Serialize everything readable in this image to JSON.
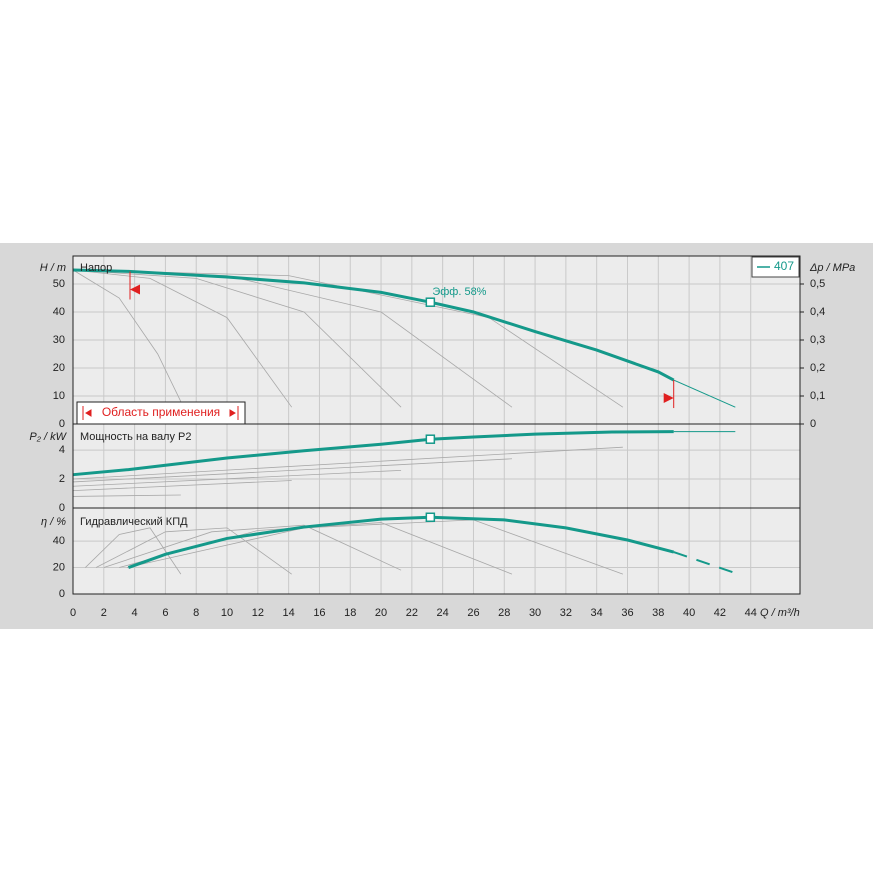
{
  "chart_data": [
    {
      "type": "line",
      "title": "Напор",
      "ylabel": "H / m",
      "y2label": "Δp / MPa",
      "ylim": [
        0,
        60
      ],
      "yticks": [
        0,
        10,
        20,
        30,
        40,
        50
      ],
      "y2lim": [
        0,
        0.6
      ],
      "y2ticks": [
        0,
        {
          "value": 0.1,
          "label": "0,1"
        },
        {
          "value": 0.2,
          "label": "0,2"
        },
        {
          "value": 0.3,
          "label": "0,3"
        },
        {
          "value": 0.4,
          "label": "0,4"
        },
        {
          "value": 0.5,
          "label": "0,5"
        }
      ],
      "grid": true,
      "legend": "top-right",
      "extrapolated_style": "thin",
      "series": [
        {
          "name": "407",
          "color": "#14998a",
          "x": [
            0,
            3.6,
            10,
            15,
            20,
            23.2,
            26,
            30,
            34,
            38,
            39,
            43
          ],
          "values": [
            55,
            54.5,
            52.5,
            50.4,
            47,
            43.5,
            40,
            33,
            26.4,
            18.6,
            15.7,
            6
          ]
        }
      ],
      "duty_point": {
        "x": 23.2,
        "y": 43.5
      },
      "annotation": "Эфф. 58%",
      "application_range": [
        3.7,
        39
      ],
      "application_range_label": "Область применения",
      "reference_curves": [
        {
          "x": [
            0,
            3,
            5.5,
            7
          ],
          "values": [
            55,
            45,
            25,
            8
          ]
        },
        {
          "x": [
            0,
            5,
            10,
            14.2
          ],
          "values": [
            55,
            52,
            38,
            6
          ]
        },
        {
          "x": [
            0,
            8,
            15,
            21.3
          ],
          "values": [
            55,
            52,
            40,
            6
          ]
        },
        {
          "x": [
            0,
            10,
            20,
            28.5
          ],
          "values": [
            55,
            53,
            40,
            6
          ]
        },
        {
          "x": [
            0,
            14,
            27,
            35.7
          ],
          "values": [
            55,
            53,
            38,
            6
          ]
        }
      ]
    },
    {
      "type": "line",
      "title": "Мощность на валу P2",
      "ylabel": "P₂ / kW",
      "ylim": [
        0,
        5.8
      ],
      "yticks": [
        0,
        2,
        4
      ],
      "grid": true,
      "extrapolated_style": "thin",
      "series": [
        {
          "color": "#14998a",
          "x": [
            0,
            3.6,
            10,
            15,
            20,
            23.2,
            26,
            30,
            35,
            39,
            43
          ],
          "values": [
            2.3,
            2.65,
            3.45,
            3.95,
            4.4,
            4.75,
            4.9,
            5.1,
            5.25,
            5.27,
            5.27
          ]
        }
      ],
      "duty_point": {
        "x": 23.2,
        "y": 4.75
      },
      "reference_curves": [
        {
          "x": [
            0,
            7
          ],
          "values": [
            0.8,
            0.9
          ]
        },
        {
          "x": [
            0,
            14.2
          ],
          "values": [
            1.2,
            1.9
          ]
        },
        {
          "x": [
            0,
            21.3
          ],
          "values": [
            1.5,
            2.6
          ]
        },
        {
          "x": [
            0,
            28.5
          ],
          "values": [
            1.8,
            3.4
          ]
        },
        {
          "x": [
            0,
            35.7
          ],
          "values": [
            2.0,
            4.2
          ]
        }
      ]
    },
    {
      "type": "line",
      "title": "Гидравлический КПД",
      "ylabel": "η / %",
      "xlabel": "Q / m³/h",
      "ylim": [
        0,
        65
      ],
      "yticks": [
        0,
        20,
        40
      ],
      "grid": true,
      "extrapolated_style": "dashed",
      "xlim": [
        0,
        47.2
      ],
      "xticks": [
        0,
        2,
        4,
        6,
        8,
        10,
        12,
        14,
        16,
        18,
        20,
        22,
        24,
        26,
        28,
        30,
        32,
        34,
        36,
        38,
        40,
        42,
        44
      ],
      "series": [
        {
          "color": "#14998a",
          "x": [
            3.6,
            6,
            10,
            15,
            20,
            23.2,
            28,
            32,
            36,
            39,
            43
          ],
          "values": [
            20,
            30,
            42,
            50.6,
            56.6,
            58,
            56,
            50,
            40.8,
            31.7,
            15.8
          ]
        }
      ],
      "duty_point": {
        "x": 23.2,
        "y": 58
      },
      "reference_curves": [
        {
          "x": [
            0.8,
            3,
            5,
            7
          ],
          "values": [
            20,
            45,
            50,
            15
          ]
        },
        {
          "x": [
            1.5,
            6,
            10,
            14.2
          ],
          "values": [
            20,
            47,
            50,
            15
          ]
        },
        {
          "x": [
            2,
            9,
            15,
            21.3
          ],
          "values": [
            20,
            47,
            52,
            18
          ]
        },
        {
          "x": [
            3,
            12,
            20,
            28.5
          ],
          "values": [
            20,
            48,
            54,
            15
          ]
        },
        {
          "x": [
            3.5,
            15,
            26,
            35.7
          ],
          "values": [
            20,
            50,
            56,
            15
          ]
        }
      ]
    }
  ]
}
